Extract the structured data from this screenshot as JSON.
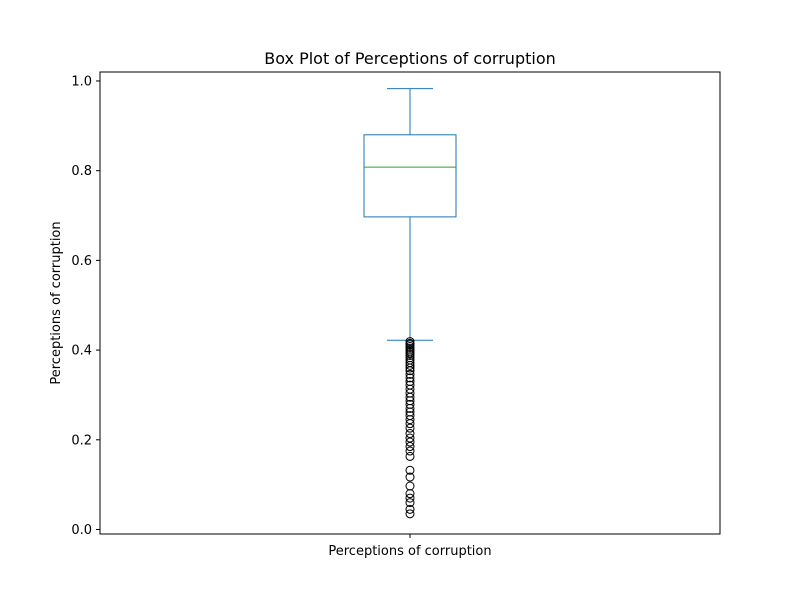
{
  "chart_data": {
    "type": "box",
    "title": "Box Plot of Perceptions of corruption",
    "xlabel": "",
    "ylabel": "Perceptions of corruption",
    "categories": [
      "Perceptions of corruption"
    ],
    "ylim": [
      -0.01,
      1.02
    ],
    "yticks": [
      0.0,
      0.2,
      0.4,
      0.6,
      0.8,
      1.0
    ],
    "ytick_labels": [
      "0.0",
      "0.2",
      "0.4",
      "0.6",
      "0.8",
      "1.0"
    ],
    "grid": false,
    "legend": "none",
    "series": [
      {
        "stats": {
          "whisker_low": 0.422,
          "q1": 0.697,
          "median": 0.808,
          "q3": 0.88,
          "whisker_high": 0.983
        },
        "outliers": [
          0.419,
          0.415,
          0.412,
          0.408,
          0.404,
          0.4,
          0.396,
          0.392,
          0.388,
          0.383,
          0.378,
          0.372,
          0.366,
          0.36,
          0.354,
          0.346,
          0.338,
          0.33,
          0.322,
          0.313,
          0.304,
          0.295,
          0.287,
          0.279,
          0.27,
          0.262,
          0.254,
          0.245,
          0.236,
          0.226,
          0.214,
          0.204,
          0.195,
          0.185,
          0.175,
          0.163,
          0.132,
          0.117,
          0.097,
          0.08,
          0.07,
          0.06,
          0.045,
          0.035
        ]
      }
    ],
    "colors": {
      "box": "#1f77b4",
      "median": "#2ca02c",
      "outlier": "#000000",
      "axes": "#000000"
    }
  }
}
